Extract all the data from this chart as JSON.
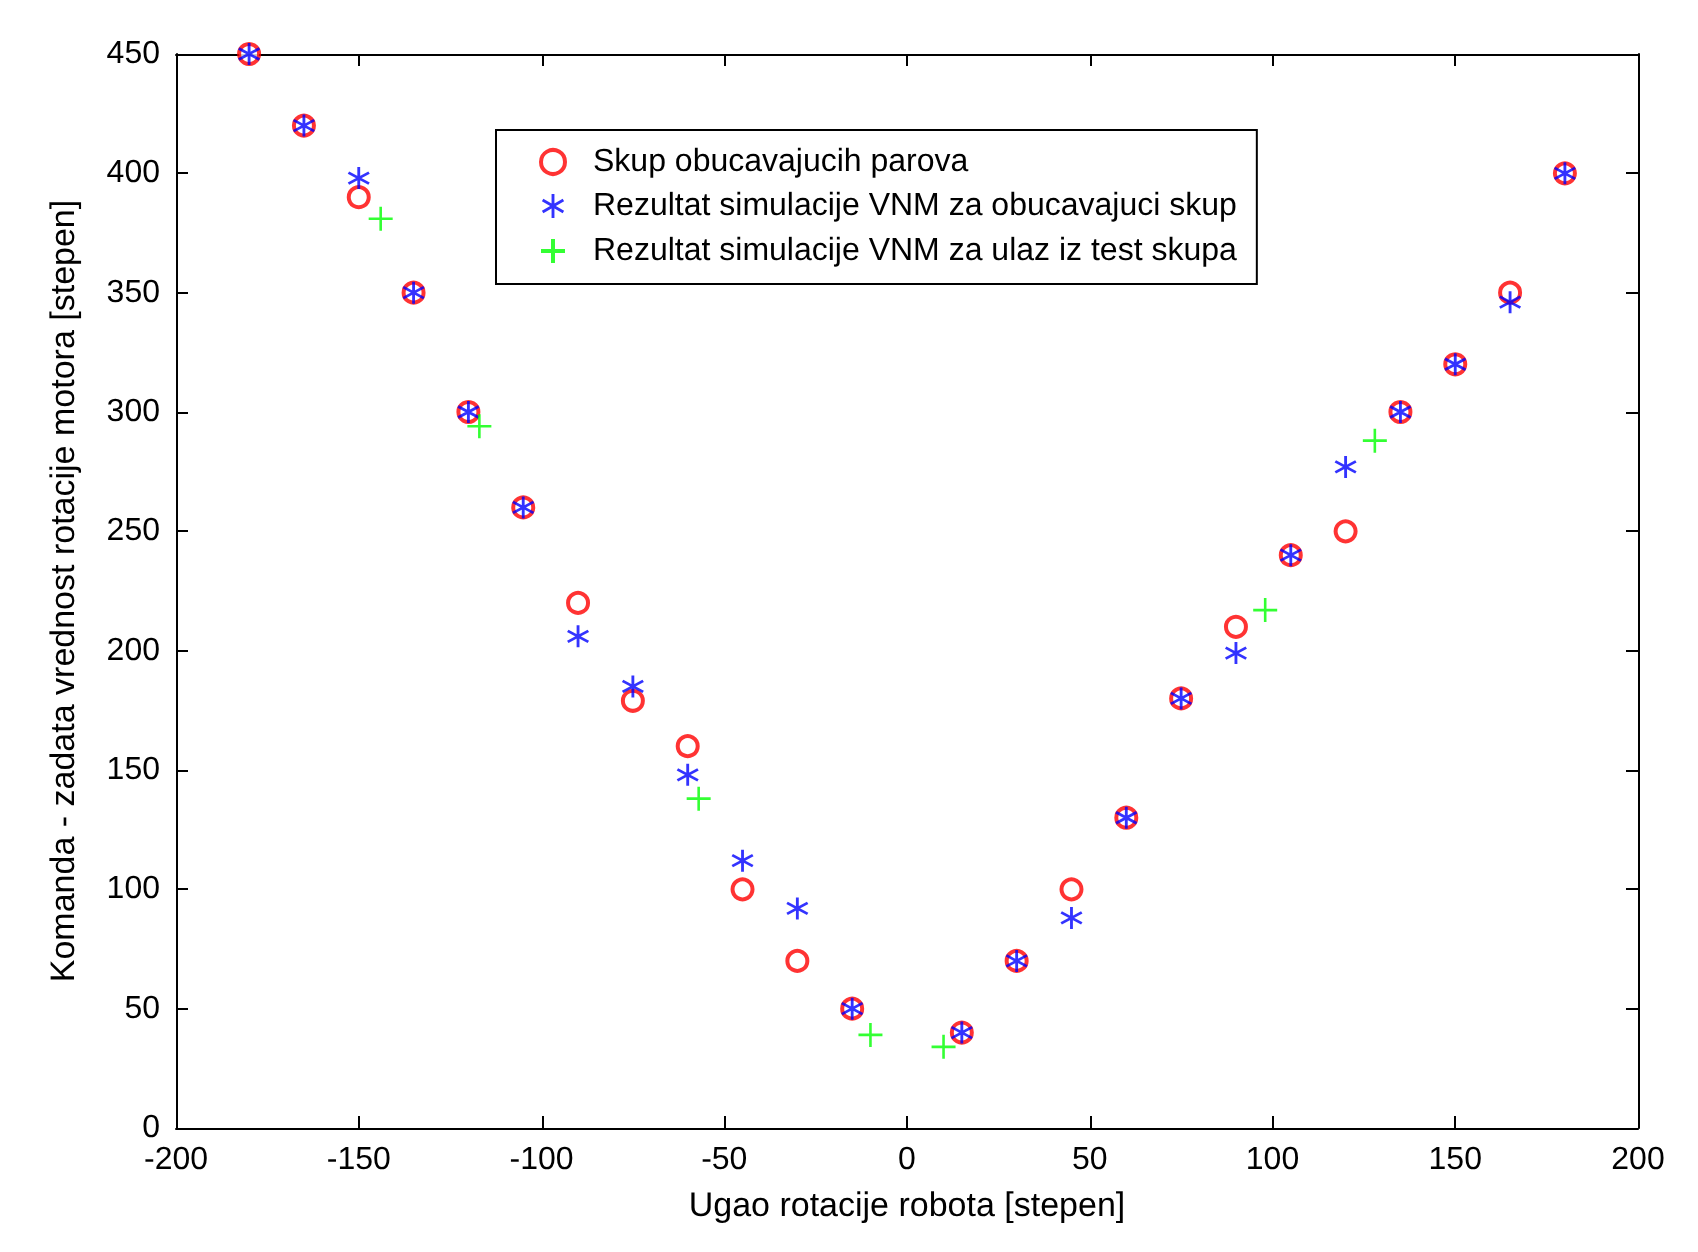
{
  "chart_data": {
    "type": "scatter",
    "xlabel": "Ugao rotacije robota [stepen]",
    "ylabel": "Komanda - zadata vrednost rotacije motora [stepen]",
    "xlim": [
      -200,
      200
    ],
    "xticks": [
      -200,
      -150,
      -100,
      -50,
      0,
      50,
      100,
      150,
      200
    ],
    "ylim": [
      0,
      450
    ],
    "yticks": [
      0,
      50,
      100,
      150,
      200,
      250,
      300,
      350,
      400,
      450
    ],
    "grid": false,
    "legend": "top",
    "series": [
      {
        "name": "Skup obucavajucih parova",
        "color": "#ff0000",
        "marker": "circle",
        "x": [
          -180,
          -165,
          -150,
          -135,
          -120,
          -105,
          -90,
          -75,
          -60,
          -45,
          -30,
          -15,
          15,
          30,
          45,
          60,
          75,
          90,
          105,
          120,
          135,
          150,
          165,
          180
        ],
        "values": [
          450,
          420,
          390,
          350,
          300,
          260,
          220,
          179,
          160,
          100,
          70,
          50,
          40,
          70,
          100,
          130,
          180,
          210,
          240,
          250,
          300,
          320,
          350,
          400
        ]
      },
      {
        "name": "Rezultat simulacije VNM za obucavajuci skup",
        "color": "#0000ff",
        "x": [
          -180,
          -165,
          -150,
          -135,
          -120,
          -105,
          -90,
          -75,
          -60,
          -45,
          -30,
          -15,
          15,
          30,
          45,
          60,
          75,
          90,
          105,
          120,
          135,
          150,
          165,
          180
        ],
        "values": [
          450,
          420,
          398,
          350,
          300,
          260,
          206,
          185,
          148,
          112,
          92,
          50,
          40,
          70,
          88,
          130,
          180,
          199,
          240,
          277,
          300,
          320,
          346,
          400
        ]
      },
      {
        "name": "Rezultat simulacije VNM za ulaz iz test skupa",
        "color": "#00ff00",
        "marker": "cross",
        "x": [
          -144,
          -117,
          -57,
          -10,
          10,
          98,
          128
        ],
        "values": [
          381,
          294,
          138,
          39,
          34,
          217,
          288
        ]
      }
    ]
  }
}
